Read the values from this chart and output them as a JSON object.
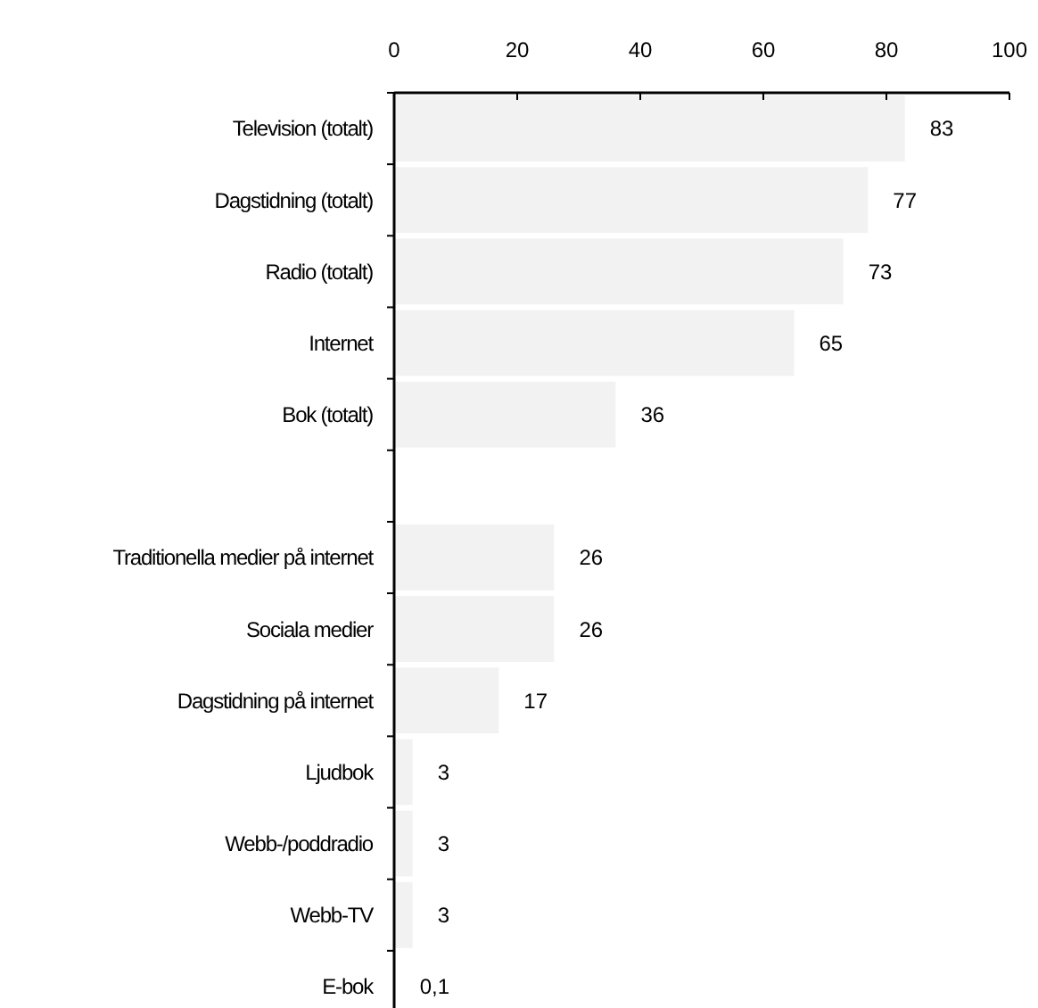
{
  "chart_data": {
    "type": "bar",
    "orientation": "horizontal",
    "categories": [
      "Television (totalt)",
      "Dagstidning (totalt)",
      "Radio (totalt)",
      "Internet",
      "Bok (totalt)",
      null,
      "Traditionella medier på internet",
      "Sociala medier",
      "Dagstidning på internet",
      "Ljudbok",
      "Webb-/poddradio",
      "Webb-TV",
      "E-bok"
    ],
    "values": [
      83,
      77,
      73,
      65,
      36,
      null,
      26,
      26,
      17,
      3,
      3,
      3,
      0.1
    ],
    "value_labels": [
      "83",
      "77",
      "73",
      "65",
      "36",
      null,
      "26",
      "26",
      "17",
      "3",
      "3",
      "3",
      "0,1"
    ],
    "color": "#f2f2f2",
    "xlim": [
      0,
      100
    ],
    "xticks": [
      0,
      20,
      40,
      60,
      80,
      100
    ],
    "grid": false
  }
}
